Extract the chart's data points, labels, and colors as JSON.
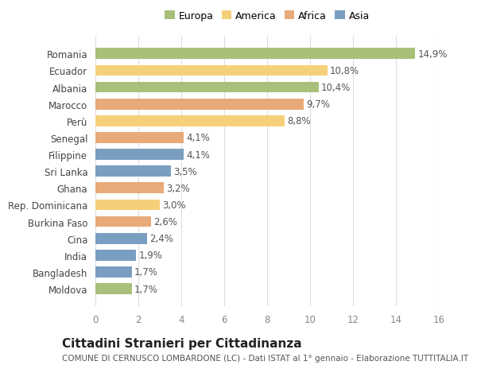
{
  "countries": [
    "Romania",
    "Ecuador",
    "Albania",
    "Marocco",
    "Perù",
    "Senegal",
    "Filippine",
    "Sri Lanka",
    "Ghana",
    "Rep. Dominicana",
    "Burkina Faso",
    "Cina",
    "India",
    "Bangladesh",
    "Moldova"
  ],
  "values": [
    14.9,
    10.8,
    10.4,
    9.7,
    8.8,
    4.1,
    4.1,
    3.5,
    3.2,
    3.0,
    2.6,
    2.4,
    1.9,
    1.7,
    1.7
  ],
  "continents": [
    "Europa",
    "America",
    "Europa",
    "Africa",
    "America",
    "Africa",
    "Asia",
    "Asia",
    "Africa",
    "America",
    "Africa",
    "Asia",
    "Asia",
    "Asia",
    "Europa"
  ],
  "colors": {
    "Europa": "#a8c07a",
    "America": "#f5d07a",
    "Africa": "#e8aa78",
    "Asia": "#7a9ec0"
  },
  "legend_order": [
    "Europa",
    "America",
    "Africa",
    "Asia"
  ],
  "xlim": [
    0,
    16
  ],
  "xticks": [
    0,
    2,
    4,
    6,
    8,
    10,
    12,
    14,
    16
  ],
  "title": "Cittadini Stranieri per Cittadinanza",
  "subtitle": "COMUNE DI CERNUSCO LOMBARDONE (LC) - Dati ISTAT al 1° gennaio - Elaborazione TUTTITALIA.IT",
  "bg_color": "#ffffff",
  "grid_color": "#dddddd",
  "label_fontsize": 8.5,
  "ytick_fontsize": 8.5,
  "xtick_fontsize": 8.5,
  "title_fontsize": 11,
  "subtitle_fontsize": 7.5,
  "bar_height": 0.65
}
